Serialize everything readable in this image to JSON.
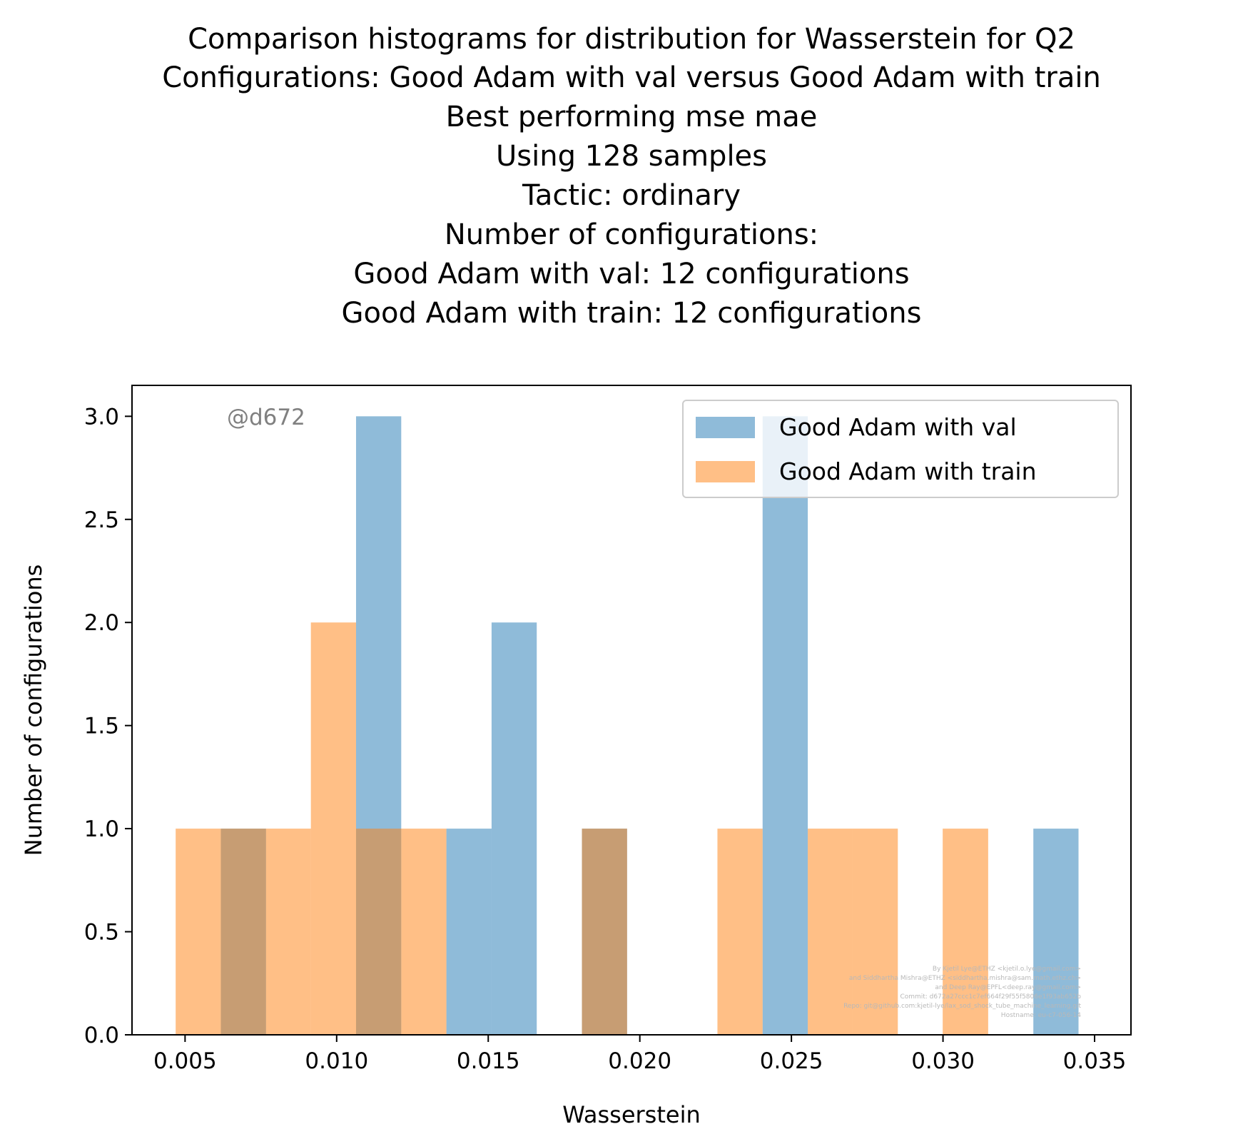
{
  "chart_data": {
    "type": "bar",
    "title_lines": [
      "Comparison histograms for distribution for Wasserstein for Q2",
      "Configurations: Good Adam with val versus Good Adam with train",
      "Best performing mse mae",
      "Using 128 samples",
      "Tactic: ordinary",
      "Number of configurations:",
      "Good Adam with val: 12 configurations",
      "Good Adam with train: 12 configurations"
    ],
    "xlabel": "Wasserstein",
    "ylabel": "Number of configurations",
    "xlim": [
      0.00325,
      0.0362
    ],
    "ylim": [
      0,
      3.15
    ],
    "x_ticks": [
      {
        "value": 0.005,
        "label": "0.005"
      },
      {
        "value": 0.01,
        "label": "0.010"
      },
      {
        "value": 0.015,
        "label": "0.015"
      },
      {
        "value": 0.02,
        "label": "0.020"
      },
      {
        "value": 0.025,
        "label": "0.025"
      },
      {
        "value": 0.03,
        "label": "0.030"
      },
      {
        "value": 0.035,
        "label": "0.035"
      }
    ],
    "y_ticks": [
      {
        "value": 0.0,
        "label": "0.0"
      },
      {
        "value": 0.5,
        "label": "0.5"
      },
      {
        "value": 1.0,
        "label": "1.0"
      },
      {
        "value": 1.5,
        "label": "1.5"
      },
      {
        "value": 2.0,
        "label": "2.0"
      },
      {
        "value": 2.5,
        "label": "2.5"
      },
      {
        "value": 3.0,
        "label": "3.0"
      }
    ],
    "grid": false,
    "legend_position": "top-right",
    "series": [
      {
        "name": "Good Adam with val",
        "color": "#1f77b4",
        "opacity": 0.5,
        "bins": [
          {
            "x0": 0.00618,
            "x1": 0.00767,
            "count": 1
          },
          {
            "x0": 0.01064,
            "x1": 0.01213,
            "count": 3
          },
          {
            "x0": 0.01362,
            "x1": 0.01511,
            "count": 1
          },
          {
            "x0": 0.01511,
            "x1": 0.0166,
            "count": 2
          },
          {
            "x0": 0.01809,
            "x1": 0.01958,
            "count": 1
          },
          {
            "x0": 0.02405,
            "x1": 0.02554,
            "count": 3
          },
          {
            "x0": 0.03298,
            "x1": 0.03447,
            "count": 1
          }
        ]
      },
      {
        "name": "Good Adam with train",
        "color": "#ff7f0e",
        "opacity": 0.5,
        "bins": [
          {
            "x0": 0.00469,
            "x1": 0.00618,
            "count": 1
          },
          {
            "x0": 0.00618,
            "x1": 0.00767,
            "count": 1
          },
          {
            "x0": 0.00767,
            "x1": 0.00915,
            "count": 1
          },
          {
            "x0": 0.00915,
            "x1": 0.01064,
            "count": 2
          },
          {
            "x0": 0.01064,
            "x1": 0.01213,
            "count": 1
          },
          {
            "x0": 0.01213,
            "x1": 0.01362,
            "count": 1
          },
          {
            "x0": 0.01809,
            "x1": 0.01958,
            "count": 1
          },
          {
            "x0": 0.02256,
            "x1": 0.02405,
            "count": 1
          },
          {
            "x0": 0.02554,
            "x1": 0.02702,
            "count": 1
          },
          {
            "x0": 0.02702,
            "x1": 0.02851,
            "count": 1
          },
          {
            "x0": 0.02999,
            "x1": 0.03149,
            "count": 1
          }
        ]
      }
    ],
    "watermark": "@d672",
    "credits": [
      "By Kjetil Lye@ETHZ <kjetil.o.lye@gmail.com>",
      "and Siddhartha Mishra@ETHZ <siddhartha.mishra@sam.math.ethz.ch>",
      "and Deep Ray@EPFL<deep.ray@gmail.com>",
      "Commit: d672a27ccc1c7ef664f29f55f5806e1f93ab652b",
      "Repo: git@github.com:kjetil-lye/lax_sod_shock_tube_machine_learning.git",
      "Hostname: eu-c7-056-14"
    ]
  }
}
